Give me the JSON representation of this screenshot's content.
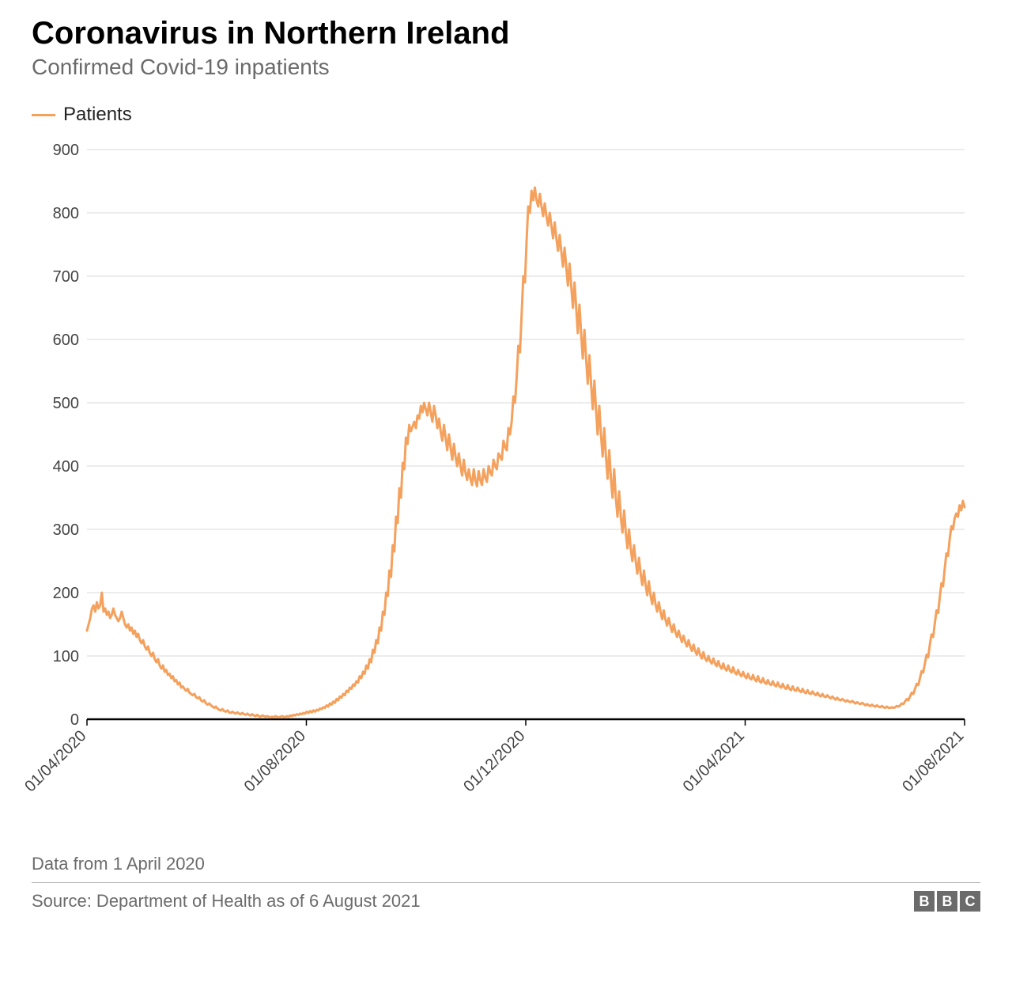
{
  "header": {
    "title": "Coronavirus in Northern Ireland",
    "subtitle": "Confirmed Covid-19 inpatients"
  },
  "legend": {
    "label": "Patients",
    "color": "#f4a15d"
  },
  "chart": {
    "type": "line",
    "line_color": "#f4a15d",
    "line_width": 3,
    "background_color": "#ffffff",
    "grid_color": "#d9d9d9",
    "axis_color": "#000000",
    "axis_line_width": 2.5,
    "tick_font_size": 20,
    "tick_color": "#444444",
    "ylim": [
      0,
      900
    ],
    "ytick_step": 100,
    "y_ticks": [
      0,
      100,
      200,
      300,
      400,
      500,
      600,
      700,
      800,
      900
    ],
    "x_ticks": [
      {
        "pos": 0.0,
        "label": "01/04/2020"
      },
      {
        "pos": 0.25,
        "label": "01/08/2020"
      },
      {
        "pos": 0.5,
        "label": "01/12/2020"
      },
      {
        "pos": 0.75,
        "label": "01/04/2021"
      },
      {
        "pos": 1.0,
        "label": "01/08/2021"
      }
    ],
    "x_tick_rotation": -45,
    "series": {
      "name": "Patients",
      "values": [
        140,
        150,
        160,
        175,
        180,
        170,
        185,
        175,
        180,
        200,
        170,
        175,
        165,
        170,
        160,
        165,
        175,
        165,
        160,
        155,
        160,
        170,
        160,
        150,
        145,
        150,
        140,
        145,
        135,
        140,
        130,
        135,
        125,
        120,
        125,
        115,
        110,
        115,
        105,
        100,
        105,
        95,
        90,
        95,
        85,
        80,
        85,
        75,
        78,
        70,
        72,
        65,
        68,
        60,
        62,
        55,
        58,
        50,
        52,
        48,
        45,
        48,
        42,
        40,
        38,
        40,
        35,
        33,
        35,
        30,
        28,
        30,
        25,
        23,
        25,
        22,
        20,
        18,
        20,
        17,
        15,
        14,
        16,
        13,
        12,
        14,
        11,
        10,
        12,
        10,
        9,
        11,
        9,
        8,
        10,
        8,
        7,
        9,
        7,
        6,
        8,
        6,
        5,
        7,
        5,
        4,
        6,
        5,
        4,
        5,
        4,
        3,
        4,
        3,
        5,
        4,
        3,
        4,
        5,
        4,
        3,
        5,
        4,
        6,
        5,
        7,
        6,
        8,
        7,
        9,
        8,
        10,
        9,
        12,
        10,
        13,
        11,
        14,
        12,
        15,
        14,
        17,
        16,
        19,
        18,
        22,
        20,
        25,
        23,
        28,
        26,
        32,
        30,
        36,
        34,
        40,
        38,
        45,
        43,
        50,
        48,
        55,
        53,
        60,
        58,
        68,
        65,
        75,
        72,
        85,
        80,
        95,
        90,
        110,
        105,
        125,
        120,
        145,
        140,
        170,
        165,
        200,
        195,
        235,
        225,
        275,
        265,
        320,
        310,
        365,
        350,
        405,
        395,
        445,
        435,
        465,
        455,
        462,
        470,
        460,
        480,
        475,
        495,
        485,
        500,
        490,
        480,
        500,
        485,
        470,
        495,
        480,
        460,
        475,
        455,
        440,
        465,
        445,
        425,
        450,
        430,
        410,
        435,
        415,
        400,
        420,
        400,
        385,
        410,
        390,
        378,
        395,
        380,
        370,
        395,
        378,
        368,
        392,
        378,
        370,
        395,
        382,
        375,
        400,
        390,
        385,
        410,
        400,
        395,
        420,
        415,
        410,
        440,
        430,
        425,
        460,
        450,
        470,
        510,
        500,
        540,
        590,
        580,
        640,
        700,
        690,
        755,
        810,
        800,
        835,
        820,
        840,
        820,
        810,
        830,
        810,
        795,
        815,
        795,
        780,
        800,
        780,
        760,
        785,
        760,
        740,
        765,
        740,
        715,
        745,
        715,
        685,
        720,
        685,
        650,
        690,
        650,
        610,
        655,
        610,
        570,
        615,
        570,
        530,
        575,
        530,
        490,
        535,
        490,
        450,
        495,
        450,
        415,
        460,
        415,
        380,
        425,
        380,
        350,
        395,
        350,
        320,
        360,
        320,
        295,
        330,
        295,
        270,
        300,
        270,
        250,
        275,
        250,
        230,
        255,
        230,
        212,
        235,
        212,
        196,
        218,
        196,
        182,
        200,
        182,
        170,
        185,
        170,
        158,
        172,
        158,
        148,
        160,
        148,
        138,
        150,
        138,
        130,
        140,
        130,
        122,
        132,
        122,
        115,
        125,
        115,
        108,
        118,
        108,
        102,
        112,
        102,
        96,
        106,
        96,
        92,
        100,
        92,
        88,
        96,
        88,
        84,
        92,
        84,
        80,
        88,
        80,
        77,
        85,
        77,
        74,
        82,
        74,
        71,
        78,
        71,
        68,
        75,
        68,
        65,
        72,
        65,
        63,
        70,
        63,
        60,
        68,
        60,
        58,
        65,
        58,
        56,
        62,
        56,
        54,
        60,
        54,
        52,
        58,
        52,
        50,
        56,
        50,
        48,
        54,
        48,
        46,
        52,
        46,
        45,
        50,
        45,
        43,
        48,
        43,
        41,
        46,
        41,
        40,
        44,
        40,
        38,
        42,
        38,
        36,
        40,
        36,
        35,
        38,
        35,
        33,
        36,
        33,
        31,
        34,
        31,
        30,
        32,
        30,
        28,
        30,
        28,
        27,
        29,
        27,
        25,
        27,
        25,
        24,
        26,
        24,
        22,
        24,
        22,
        21,
        23,
        21,
        20,
        22,
        20,
        19,
        21,
        19,
        18,
        20,
        18,
        18,
        19,
        18,
        19,
        21,
        20,
        22,
        25,
        24,
        28,
        32,
        30,
        36,
        42,
        40,
        48,
        56,
        54,
        65,
        76,
        74,
        88,
        102,
        98,
        118,
        134,
        130,
        152,
        172,
        168,
        192,
        215,
        210,
        238,
        262,
        258,
        285,
        305,
        300,
        318,
        325,
        320,
        338,
        330,
        345,
        335
      ]
    }
  },
  "footer": {
    "note": "Data from 1 April 2020",
    "source": "Source: Department of Health as of 6 August 2021",
    "logo_letters": [
      "B",
      "B",
      "C"
    ],
    "logo_bg": "#6b6b6b",
    "logo_fg": "#ffffff"
  }
}
